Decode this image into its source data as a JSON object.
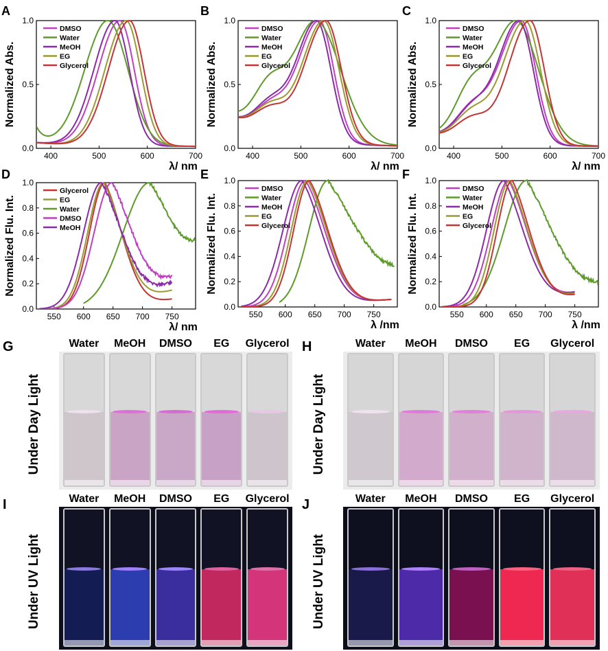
{
  "colors": {
    "DMSO": "#c03ec0",
    "Water": "#5e9a2a",
    "MeOH": "#8a2aa8",
    "EG": "#9a9a30",
    "Glycerol": "#c43434"
  },
  "chart_data": [
    {
      "id": "A",
      "type": "line",
      "ylabel": "Normalized Abs.",
      "xlabel": "λ/ nm",
      "xlim": [
        370,
        700
      ],
      "ylim": [
        0,
        1.0
      ],
      "xticks": [
        400,
        500,
        600,
        700
      ],
      "yticks": [
        0.0,
        0.5,
        1.0
      ],
      "ytick_labels": [
        "0.0",
        "0.5",
        "1.0"
      ],
      "legend": [
        "DMSO",
        "Water",
        "MeOH",
        "EG",
        "Glycerol"
      ],
      "series": [
        {
          "name": "DMSO",
          "kind": "abs",
          "peak": 543,
          "wl": 45,
          "wr": 30,
          "base": 0.03,
          "shoulder": 0
        },
        {
          "name": "Water",
          "kind": "abs",
          "peak": 518,
          "wl": 48,
          "wr": 42,
          "base": 0.03,
          "shoulder": 0,
          "uv": true
        },
        {
          "name": "MeOH",
          "kind": "abs",
          "peak": 533,
          "wl": 44,
          "wr": 30,
          "base": 0.03,
          "shoulder": 0
        },
        {
          "name": "EG",
          "kind": "abs",
          "peak": 556,
          "wl": 44,
          "wr": 30,
          "base": 0.03,
          "shoulder": 0
        },
        {
          "name": "Glycerol",
          "kind": "abs",
          "peak": 563,
          "wl": 44,
          "wr": 30,
          "base": 0.03,
          "shoulder": 0
        }
      ]
    },
    {
      "id": "B",
      "type": "line",
      "ylabel": "Normalized Abs.",
      "xlabel": "λ/ nm",
      "xlim": [
        370,
        700
      ],
      "ylim": [
        0,
        1.0
      ],
      "xticks": [
        400,
        500,
        600,
        700
      ],
      "yticks": [
        0.0,
        0.5,
        1.0
      ],
      "ytick_labels": [
        "0.0",
        "0.5",
        "1.0"
      ],
      "legend": [
        "DMSO",
        "Water",
        "MeOH",
        "EG",
        "Glycerol"
      ],
      "series": [
        {
          "name": "DMSO",
          "kind": "abs",
          "peak": 538,
          "wl": 46,
          "wr": 30,
          "base": 0.2,
          "shoulder": 0.22
        },
        {
          "name": "Water",
          "kind": "abs",
          "peak": 530,
          "wl": 50,
          "wr": 52,
          "base": 0.22,
          "shoulder": 0.38
        },
        {
          "name": "MeOH",
          "kind": "abs",
          "peak": 532,
          "wl": 44,
          "wr": 30,
          "base": 0.2,
          "shoulder": 0.24
        },
        {
          "name": "EG",
          "kind": "abs",
          "peak": 547,
          "wl": 46,
          "wr": 32,
          "base": 0.2,
          "shoulder": 0.22
        },
        {
          "name": "Glycerol",
          "kind": "abs",
          "peak": 552,
          "wl": 46,
          "wr": 32,
          "base": 0.2,
          "shoulder": 0.2
        }
      ]
    },
    {
      "id": "C",
      "type": "line",
      "ylabel": "Normalized Abs.",
      "xlabel": "λ/ nm",
      "xlim": [
        370,
        700
      ],
      "ylim": [
        0,
        1.0
      ],
      "xticks": [
        400,
        500,
        600,
        700
      ],
      "yticks": [
        0.0,
        0.5,
        1.0
      ],
      "ytick_labels": [
        "0.0",
        "0.5",
        "1.0"
      ],
      "legend": [
        "DMSO",
        "Water",
        "MeOH",
        "EG",
        "Glycerol"
      ],
      "series": [
        {
          "name": "DMSO",
          "kind": "abs",
          "peak": 540,
          "wl": 48,
          "wr": 30,
          "base": 0.08,
          "shoulder": 0.25
        },
        {
          "name": "Water",
          "kind": "abs",
          "peak": 528,
          "wl": 52,
          "wr": 48,
          "base": 0.08,
          "shoulder": 0.4
        },
        {
          "name": "MeOH",
          "kind": "abs",
          "peak": 535,
          "wl": 46,
          "wr": 30,
          "base": 0.08,
          "shoulder": 0.24
        },
        {
          "name": "EG",
          "kind": "abs",
          "peak": 548,
          "wl": 48,
          "wr": 32,
          "base": 0.08,
          "shoulder": 0.22
        },
        {
          "name": "Glycerol",
          "kind": "abs",
          "peak": 558,
          "wl": 46,
          "wr": 30,
          "base": 0.08,
          "shoulder": 0.18
        }
      ]
    },
    {
      "id": "D",
      "type": "line",
      "ylabel": "Normalized Flu. Int.",
      "xlabel": "λ/ nm",
      "xlim": [
        520,
        790
      ],
      "ylim": [
        0,
        1.0
      ],
      "xticks": [
        550,
        600,
        650,
        700,
        750
      ],
      "yticks": [
        0.0,
        0.2,
        0.4,
        0.6,
        0.8,
        1.0
      ],
      "ytick_labels": [
        "0.0",
        "0.2",
        "0.4",
        "0.6",
        "0.8",
        "1.0"
      ],
      "legend": [
        "Glycerol",
        "EG",
        "Water",
        "DMSO",
        "MeOH"
      ],
      "series": [
        {
          "name": "Glycerol",
          "kind": "em",
          "peak": 636,
          "wl": 26,
          "wr": 40,
          "start": 525,
          "end": 750,
          "tail": 0.08
        },
        {
          "name": "EG",
          "kind": "em",
          "peak": 634,
          "wl": 27,
          "wr": 42,
          "start": 525,
          "end": 750,
          "tail": 0.15
        },
        {
          "name": "Water",
          "kind": "em",
          "peak": 712,
          "wl": 45,
          "wr": 60,
          "start": 600,
          "end": 790,
          "tail": 0.55,
          "noisy": true
        },
        {
          "name": "DMSO",
          "kind": "em",
          "peak": 648,
          "wl": 30,
          "wr": 50,
          "start": 525,
          "end": 750,
          "tail": 0.26,
          "noisy": true
        },
        {
          "name": "MeOH",
          "kind": "em",
          "peak": 630,
          "wl": 30,
          "wr": 48,
          "start": 525,
          "end": 750,
          "tail": 0.21,
          "noisy": true
        }
      ]
    },
    {
      "id": "E",
      "type": "line",
      "ylabel": "Normalized Flu. Int.",
      "xlabel": "λ /nm",
      "xlim": [
        520,
        790
      ],
      "ylim": [
        0,
        1.0
      ],
      "xticks": [
        550,
        600,
        650,
        700,
        750
      ],
      "yticks": [
        0.0,
        0.2,
        0.4,
        0.6,
        0.8,
        1.0
      ],
      "ytick_labels": [
        "0.0",
        "0.2",
        "0.4",
        "0.6",
        "0.8",
        "1.0"
      ],
      "legend": [
        "DMSO",
        "Water",
        "MeOH",
        "EG",
        "Glycerol"
      ],
      "series": [
        {
          "name": "DMSO",
          "kind": "em",
          "peak": 634,
          "wl": 30,
          "wr": 45,
          "start": 525,
          "end": 780,
          "tail": 0.06
        },
        {
          "name": "Water",
          "kind": "em",
          "peak": 672,
          "wl": 32,
          "wr": 85,
          "start": 590,
          "end": 785,
          "tail": 0.33,
          "noisy": true
        },
        {
          "name": "MeOH",
          "kind": "em",
          "peak": 628,
          "wl": 32,
          "wr": 44,
          "start": 525,
          "end": 780,
          "tail": 0.06
        },
        {
          "name": "EG",
          "kind": "em",
          "peak": 638,
          "wl": 28,
          "wr": 44,
          "start": 525,
          "end": 780,
          "tail": 0.06
        },
        {
          "name": "Glycerol",
          "kind": "em",
          "peak": 641,
          "wl": 27,
          "wr": 43,
          "start": 525,
          "end": 780,
          "tail": 0.06
        }
      ]
    },
    {
      "id": "F",
      "type": "line",
      "ylabel": "Normalized Flu. Int.",
      "xlabel": "λ /nm",
      "xlim": [
        520,
        790
      ],
      "ylim": [
        0,
        1.0
      ],
      "xticks": [
        550,
        600,
        650,
        700,
        750
      ],
      "yticks": [
        0.0,
        0.2,
        0.4,
        0.6,
        0.8,
        1.0
      ],
      "ytick_labels": [
        "0.0",
        "0.2",
        "0.4",
        "0.6",
        "0.8",
        "1.0"
      ],
      "legend": [
        "DMSO",
        "Water",
        "MeOH",
        "EG",
        "Glycerol"
      ],
      "series": [
        {
          "name": "DMSO",
          "kind": "em",
          "peak": 638,
          "wl": 30,
          "wr": 45,
          "start": 525,
          "end": 750,
          "tail": 0.12
        },
        {
          "name": "Water",
          "kind": "em",
          "peak": 668,
          "wl": 38,
          "wr": 70,
          "start": 560,
          "end": 790,
          "tail": 0.2,
          "noisy": true
        },
        {
          "name": "MeOH",
          "kind": "em",
          "peak": 630,
          "wl": 30,
          "wr": 46,
          "start": 525,
          "end": 750,
          "tail": 0.12
        },
        {
          "name": "EG",
          "kind": "em",
          "peak": 640,
          "wl": 27,
          "wr": 44,
          "start": 525,
          "end": 750,
          "tail": 0.11
        },
        {
          "name": "Glycerol",
          "kind": "em",
          "peak": 644,
          "wl": 26,
          "wr": 43,
          "start": 525,
          "end": 750,
          "tail": 0.1
        }
      ]
    }
  ],
  "photos": {
    "solvents": [
      "Water",
      "MeOH",
      "DMSO",
      "EG",
      "Glycerol"
    ],
    "day_light_label": "Under Day Light",
    "uv_light_label": "Under UV Light",
    "panels": [
      {
        "id": "G",
        "side_label": "Under Day Light",
        "top": "#d8d8d8",
        "liquid": [
          "#cfc6cc",
          "#c9a4c4",
          "#c8a8c6",
          "#c7a2c6",
          "#cec4cc"
        ],
        "meniscus": [
          "#efe0ee",
          "#dd6fd6",
          "#d66bd2",
          "#e06ad8",
          "#e9c6e4"
        ],
        "bg": "#ececec"
      },
      {
        "id": "H",
        "side_label": "Under Day Light",
        "top": "#d6d6d6",
        "liquid": [
          "#cfc8ce",
          "#d2aacb",
          "#d0b0cb",
          "#d0b4cc",
          "#d0b8cc"
        ],
        "meniscus": [
          "#efe4ee",
          "#e07ad8",
          "#e080d8",
          "#e496da",
          "#e6a9de"
        ],
        "bg": "#ebebeb"
      },
      {
        "id": "I",
        "side_label": "Under UV Light",
        "top": "#111324",
        "liquid": [
          "#141c54",
          "#2c3db0",
          "#3a2e9e",
          "#c0285e",
          "#d4357a"
        ],
        "meniscus": [
          "#8a7ae0",
          "#a080ff",
          "#9a86ff",
          "#e060a0",
          "#e070a8"
        ],
        "bg": "#0d0f1c"
      },
      {
        "id": "J",
        "side_label": "Under UV Light",
        "top": "#0e1020",
        "liquid": [
          "#1a1a4a",
          "#4c2aa8",
          "#7a1050",
          "#ee2850",
          "#e03058"
        ],
        "meniscus": [
          "#8a70d8",
          "#b080ff",
          "#c060c0",
          "#ff6080",
          "#f06080"
        ],
        "bg": "#0c0d1a"
      }
    ]
  }
}
